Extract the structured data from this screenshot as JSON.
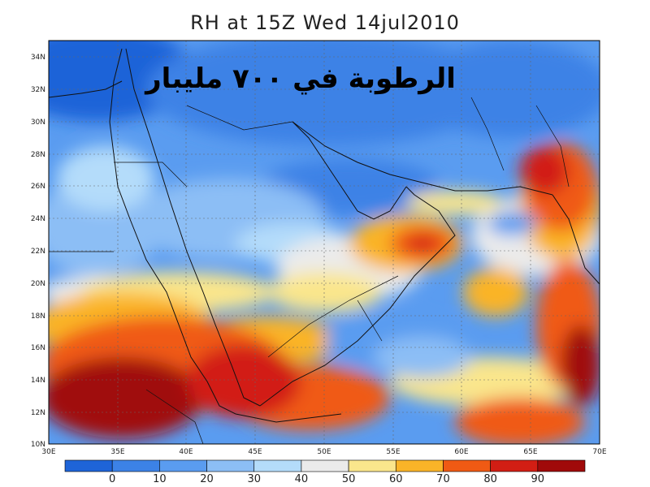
{
  "title": "RH at 15Z Wed 14jul2010",
  "overlay_text": "الرطوبة في ٧٠٠ مليبار",
  "map": {
    "lon_range": [
      30,
      70
    ],
    "lat_range": [
      10,
      35
    ],
    "lat_ticks": [
      "10N",
      "12N",
      "14N",
      "16N",
      "18N",
      "20N",
      "22N",
      "24N",
      "26N",
      "28N",
      "30N",
      "32N",
      "34N"
    ],
    "lon_ticks": [
      "30E",
      "35E",
      "40E",
      "45E",
      "50E",
      "55E",
      "60E",
      "65E",
      "70E"
    ]
  },
  "colorbar": {
    "labels": [
      "0",
      "10",
      "20",
      "30",
      "40",
      "50",
      "60",
      "70",
      "80",
      "90"
    ],
    "colors": [
      "#1e64d8",
      "#3c82e6",
      "#5a9cf0",
      "#8cbef5",
      "#b4dcfa",
      "#ebebeb",
      "#fae68c",
      "#fab428",
      "#f05a14",
      "#d21e14",
      "#a00a0a"
    ]
  }
}
